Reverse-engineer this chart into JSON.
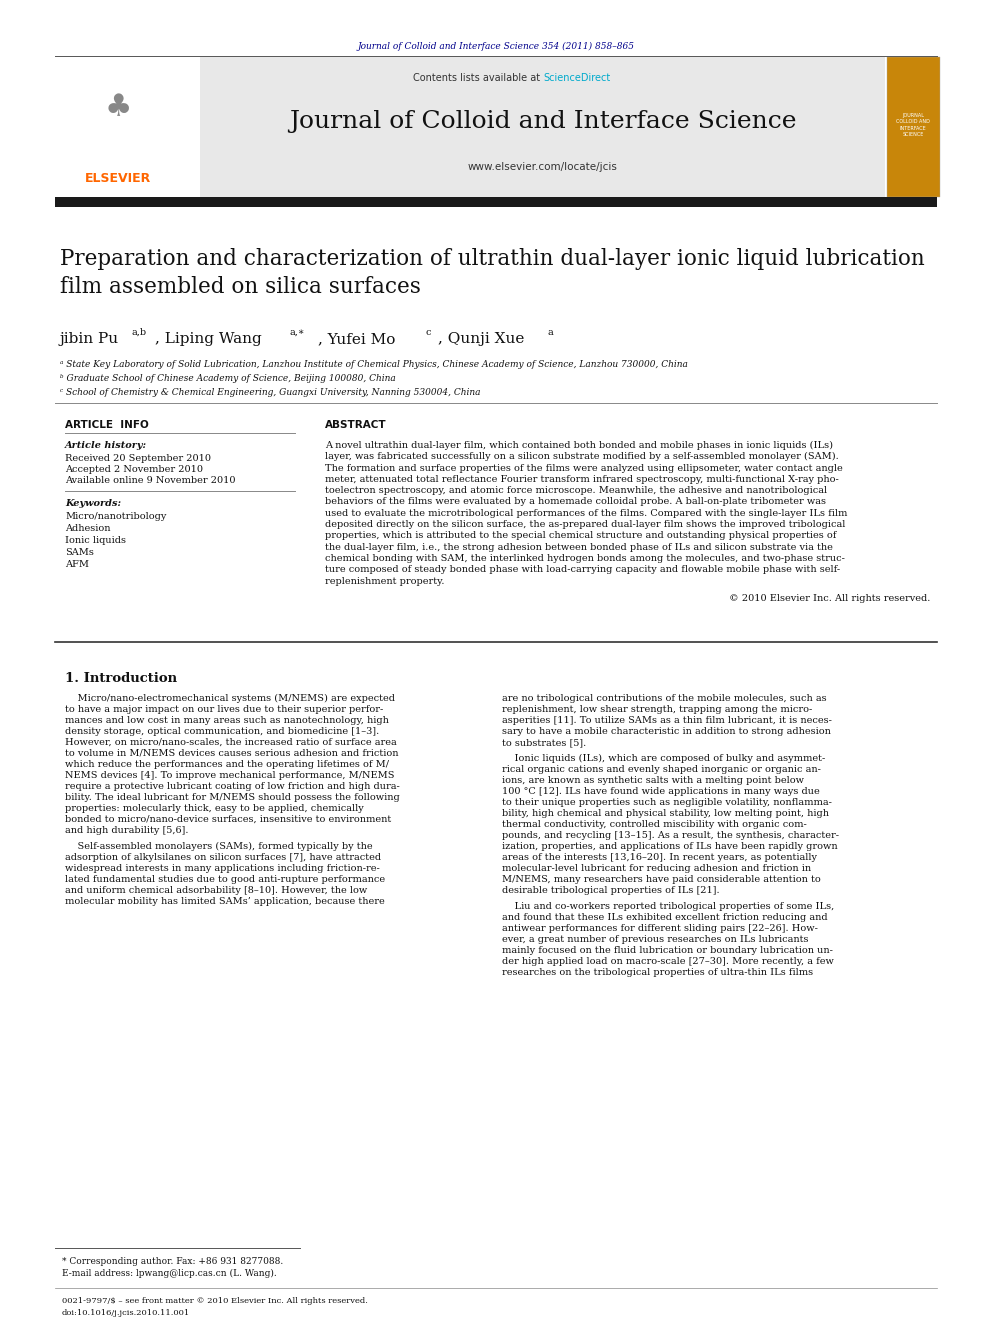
{
  "page_width": 9.92,
  "page_height": 13.23,
  "bg_color": "#ffffff",
  "top_citation": "Journal of Colloid and Interface Science 354 (2011) 858–865",
  "top_citation_color": "#00008B",
  "journal_name": "Journal of Colloid and Interface Science",
  "journal_url": "www.elsevier.com/locate/jcis",
  "contents_text": "Contents lists available at ",
  "sciencedirect_text": "ScienceDirect",
  "sciencedirect_color": "#00AACC",
  "header_bg": "#E8E8E8",
  "black_bar_color": "#1a1a1a",
  "paper_title": "Preparation and characterization of ultrathin dual-layer ionic liquid lubrication\nfilm assembled on silica surfaces",
  "affil_a": "ᵃ State Key Laboratory of Solid Lubrication, Lanzhou Institute of Chemical Physics, Chinese Academy of Science, Lanzhou 730000, China",
  "affil_b": "ᵇ Graduate School of Chinese Academy of Science, Beijing 100080, China",
  "affil_c": "ᶜ School of Chemistry & Chemical Engineering, Guangxi University, Nanning 530004, China",
  "article_info_title": "ARTICLE  INFO",
  "abstract_title": "ABSTRACT",
  "article_history_label": "Article history:",
  "received": "Received 20 September 2010",
  "accepted": "Accepted 2 November 2010",
  "available": "Available online 9 November 2010",
  "keywords_label": "Keywords:",
  "keywords": [
    "Micro/nanotribology",
    "Adhesion",
    "Ionic liquids",
    "SAMs",
    "AFM"
  ],
  "copyright": "© 2010 Elsevier Inc. All rights reserved.",
  "section1_title": "1. Introduction",
  "footnote_star": "* Corresponding author. Fax: +86 931 8277088.",
  "footnote_email": "E-mail address: lpwang@licp.cas.cn (L. Wang).",
  "issn_text": "0021-9797/$ – see front matter © 2010 Elsevier Inc. All rights reserved.",
  "doi_text": "doi:10.1016/j.jcis.2010.11.001",
  "abstract_lines": [
    "A novel ultrathin dual-layer film, which contained both bonded and mobile phases in ionic liquids (ILs)",
    "layer, was fabricated successfully on a silicon substrate modified by a self-assembled monolayer (SAM).",
    "The formation and surface properties of the films were analyzed using ellipsometer, water contact angle",
    "meter, attenuated total reflectance Fourier transform infrared spectroscopy, multi-functional X-ray pho-",
    "toelectron spectroscopy, and atomic force microscope. Meanwhile, the adhesive and nanotribological",
    "behaviors of the films were evaluated by a homemade colloidal probe. A ball-on-plate tribometer was",
    "used to evaluate the microtribological performances of the films. Compared with the single-layer ILs film",
    "deposited directly on the silicon surface, the as-prepared dual-layer film shows the improved tribological",
    "properties, which is attributed to the special chemical structure and outstanding physical properties of",
    "the dual-layer film, i.e., the strong adhesion between bonded phase of ILs and silicon substrate via the",
    "chemical bonding with SAM, the interlinked hydrogen bonds among the molecules, and two-phase struc-",
    "ture composed of steady bonded phase with load-carrying capacity and flowable mobile phase with self-",
    "replenishment property."
  ],
  "intro1_lines": [
    "    Micro/nano-electromechanical systems (M/NEMS) are expected",
    "to have a major impact on our lives due to their superior perfor-",
    "mances and low cost in many areas such as nanotechnology, high",
    "density storage, optical communication, and biomedicine [1–3].",
    "However, on micro/nano-scales, the increased ratio of surface area",
    "to volume in M/NEMS devices causes serious adhesion and friction",
    "which reduce the performances and the operating lifetimes of M/",
    "NEMS devices [4]. To improve mechanical performance, M/NEMS",
    "require a protective lubricant coating of low friction and high dura-",
    "bility. The ideal lubricant for M/NEMS should possess the following",
    "properties: molecularly thick, easy to be applied, chemically",
    "bonded to micro/nano-device surfaces, insensitive to environment",
    "and high durability [5,6]."
  ],
  "intro2_lines": [
    "    Self-assembled monolayers (SAMs), formed typically by the",
    "adsorption of alkylsilanes on silicon surfaces [7], have attracted",
    "widespread interests in many applications including friction-re-",
    "lated fundamental studies due to good anti-rupture performance",
    "and uniform chemical adsorbability [8–10]. However, the low",
    "molecular mobility has limited SAMs’ application, because there"
  ],
  "right_lines1": [
    "are no tribological contributions of the mobile molecules, such as",
    "replenishment, low shear strength, trapping among the micro-",
    "asperities [11]. To utilize SAMs as a thin film lubricant, it is neces-",
    "sary to have a mobile characteristic in addition to strong adhesion",
    "to substrates [5]."
  ],
  "right_lines2": [
    "    Ionic liquids (ILs), which are composed of bulky and asymmet-",
    "rical organic cations and evenly shaped inorganic or organic an-",
    "ions, are known as synthetic salts with a melting point below",
    "100 °C [12]. ILs have found wide applications in many ways due",
    "to their unique properties such as negligible volatility, nonflamma-",
    "bility, high chemical and physical stability, low melting point, high",
    "thermal conductivity, controlled miscibility with organic com-",
    "pounds, and recycling [13–15]. As a result, the synthesis, character-",
    "ization, properties, and applications of ILs have been rapidly grown",
    "areas of the interests [13,16–20]. In recent years, as potentially",
    "molecular-level lubricant for reducing adhesion and friction in",
    "M/NEMS, many researchers have paid considerable attention to",
    "desirable tribological properties of ILs [21]."
  ],
  "right_lines3": [
    "    Liu and co-workers reported tribological properties of some ILs,",
    "and found that these ILs exhibited excellent friction reducing and",
    "antiwear performances for different sliding pairs [22–26]. How-",
    "ever, a great number of previous researches on ILs lubricants",
    "mainly focused on the fluid lubrication or boundary lubrication un-",
    "der high applied load on macro-scale [27–30]. More recently, a few",
    "researches on the tribological properties of ultra-thin ILs films"
  ]
}
